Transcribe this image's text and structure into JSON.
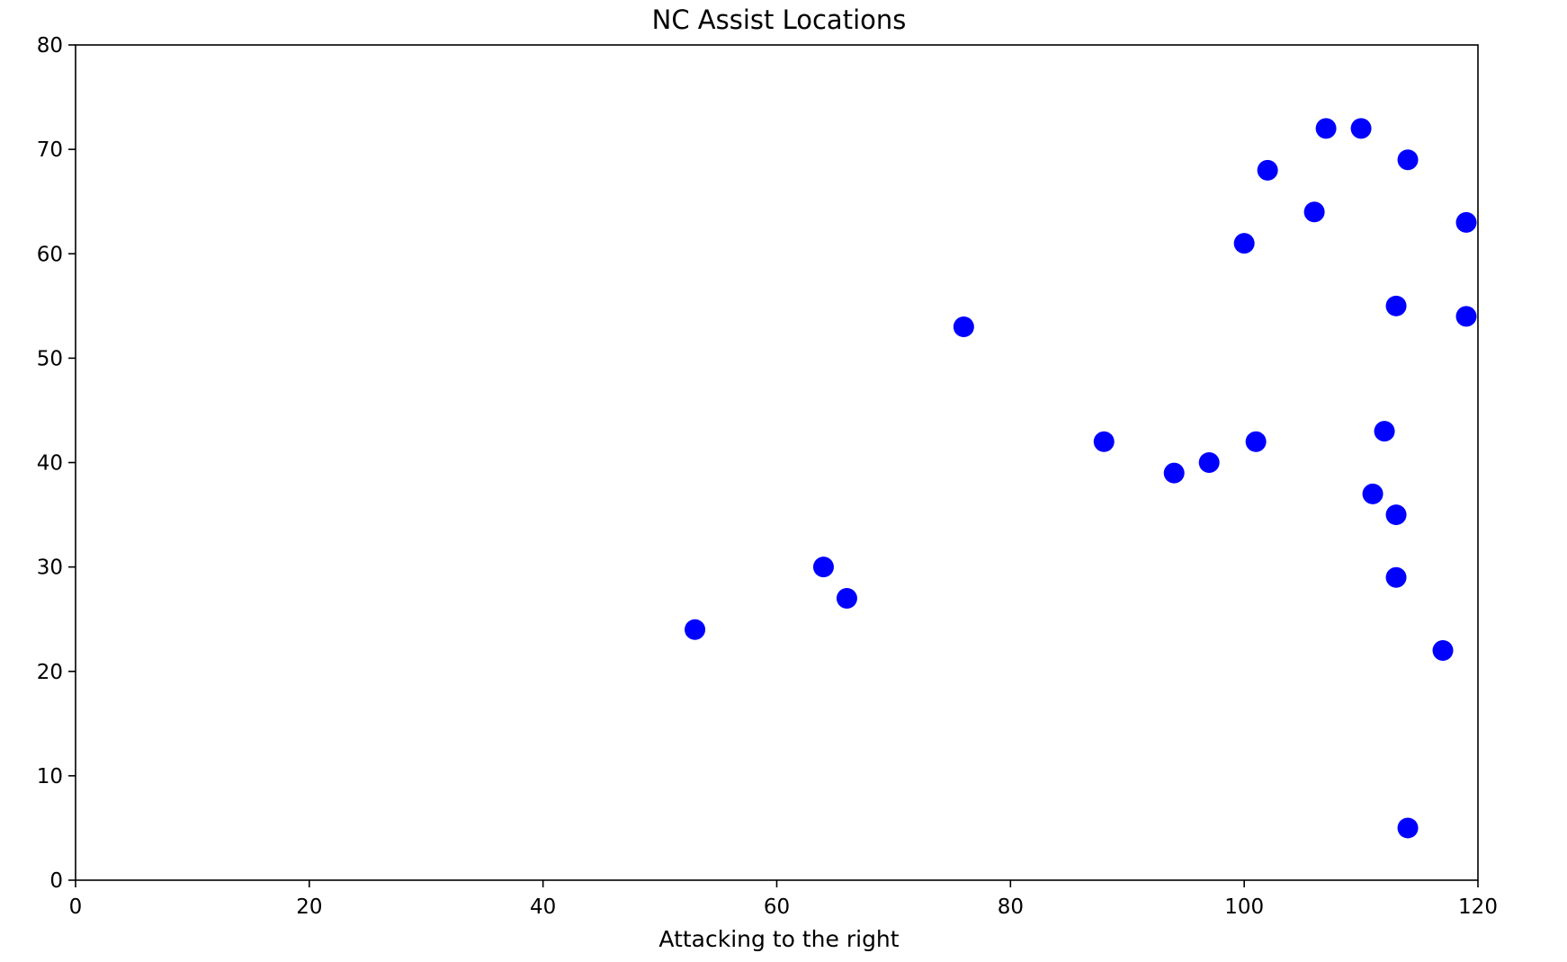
{
  "chart_data": {
    "type": "scatter",
    "title": "NC Assist Locations",
    "xlabel": "Attacking to the right",
    "ylabel": "",
    "xlim": [
      0,
      120
    ],
    "ylim": [
      0,
      80
    ],
    "xticks": [
      "0",
      "20",
      "40",
      "60",
      "80",
      "100",
      "120"
    ],
    "yticks": [
      "0",
      "10",
      "20",
      "30",
      "40",
      "50",
      "60",
      "70",
      "80"
    ],
    "grid": false,
    "marker_color": "#0000ff",
    "series": [
      {
        "points": [
          {
            "x": 53,
            "y": 24
          },
          {
            "x": 64,
            "y": 30
          },
          {
            "x": 66,
            "y": 27
          },
          {
            "x": 76,
            "y": 53
          },
          {
            "x": 88,
            "y": 42
          },
          {
            "x": 94,
            "y": 39
          },
          {
            "x": 97,
            "y": 40
          },
          {
            "x": 100,
            "y": 61
          },
          {
            "x": 101,
            "y": 42
          },
          {
            "x": 102,
            "y": 68
          },
          {
            "x": 106,
            "y": 64
          },
          {
            "x": 107,
            "y": 72
          },
          {
            "x": 110,
            "y": 72
          },
          {
            "x": 111,
            "y": 37
          },
          {
            "x": 112,
            "y": 43
          },
          {
            "x": 113,
            "y": 55
          },
          {
            "x": 113,
            "y": 35
          },
          {
            "x": 113,
            "y": 29
          },
          {
            "x": 114,
            "y": 69
          },
          {
            "x": 114,
            "y": 5
          },
          {
            "x": 117,
            "y": 22
          },
          {
            "x": 119,
            "y": 63
          },
          {
            "x": 119,
            "y": 54
          }
        ]
      }
    ]
  }
}
